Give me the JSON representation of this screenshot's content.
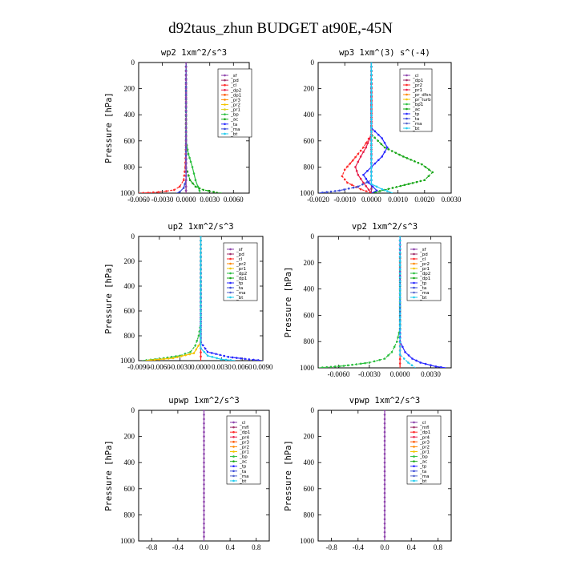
{
  "title": "d92taus_zhun  BUDGET at90E,-45N",
  "chart_data": [
    {
      "type": "line",
      "title": "wp2   1xm^2/s^3",
      "ylabel": "Pressure [hPa]",
      "xlim": [
        -0.006,
        0.008
      ],
      "ylim": [
        1000,
        0
      ],
      "xticks": [
        -0.006,
        -0.003,
        0.0,
        0.003,
        0.006
      ],
      "xtick_labels": [
        "-0.0060",
        "-0.0030",
        "0.0000",
        "0.0030",
        "0.0060"
      ],
      "yticks": [
        0,
        200,
        400,
        600,
        800,
        1000
      ],
      "ytick_labels": [
        "0",
        "200",
        "400",
        "600",
        "800",
        "1000"
      ],
      "legend": [
        "_sf",
        "_pd",
        "_cl",
        "_dp2",
        "_dp1",
        "_pr3",
        "_pr2",
        "_pr1",
        "_bp",
        "_ac",
        "_ta",
        "_ma",
        "_bt"
      ],
      "legend_colors": [
        "#8e44ad",
        "#a0306a",
        "#ff2a2a",
        "#e61e4a",
        "#ff5500",
        "#ff8800",
        "#f4c400",
        "#e0d020",
        "#2bbf3f",
        "#1aa81a",
        "#2a2aff",
        "#3b4bd8",
        "#22ccee"
      ],
      "series": [
        {
          "name": "_pd",
          "color": "#a0306a",
          "y": [
            0,
            200,
            400,
            600,
            700,
            800,
            900,
            950,
            980,
            1000
          ],
          "x": [
            0,
            0,
            0,
            0,
            0,
            0,
            0,
            0,
            0,
            0
          ]
        },
        {
          "name": "_cl",
          "color": "#ff2a2a",
          "y": [
            0,
            600,
            800,
            900,
            950,
            975,
            985,
            992,
            997,
            1000
          ],
          "x": [
            0,
            0,
            -0.0001,
            -0.0003,
            -0.0008,
            -0.0015,
            -0.0025,
            -0.0035,
            -0.0048,
            -0.006
          ]
        },
        {
          "name": "_bp",
          "color": "#2bbf3f",
          "y": [
            0,
            600,
            700,
            760,
            800,
            850,
            900,
            950,
            980,
            1000
          ],
          "x": [
            0,
            0,
            0.0003,
            0.0006,
            0.0008,
            0.001,
            0.0012,
            0.0015,
            0.0017,
            0.0018
          ]
        },
        {
          "name": "_ac",
          "color": "#1aa81a",
          "y": [
            0,
            800,
            900,
            950,
            975,
            990,
            1000
          ],
          "x": [
            0,
            0,
            0.0005,
            0.0012,
            0.0022,
            0.0035,
            0.0045
          ]
        },
        {
          "name": "_ma",
          "color": "#3b4bd8",
          "y": [
            0,
            900,
            960,
            990,
            1000
          ],
          "x": [
            0,
            0,
            -0.0003,
            -0.0008,
            -0.0012
          ]
        },
        {
          "name": "_sf",
          "color": "#8e44ad",
          "y": [
            0,
            200,
            400,
            600,
            700,
            800,
            900,
            950,
            980,
            1000
          ],
          "x": [
            0,
            0,
            0,
            0,
            0,
            0,
            0,
            0,
            0,
            0
          ]
        }
      ]
    },
    {
      "type": "line",
      "title": "wp3   1xm^(3) s^(-4)",
      "ylabel": "",
      "xlim": [
        -0.002,
        0.003
      ],
      "ylim": [
        1000,
        0
      ],
      "xticks": [
        -0.002,
        -0.001,
        0.0,
        0.001,
        0.002,
        0.003
      ],
      "xtick_labels": [
        "-0.0020",
        "-0.0010",
        "0.0000",
        "0.0010",
        "0.0020",
        "0.0030"
      ],
      "yticks": [
        0,
        200,
        400,
        600,
        800,
        1000
      ],
      "ytick_labels": [
        "0",
        "200",
        "400",
        "600",
        "800",
        "1000"
      ],
      "legend": [
        "_cl",
        "_dp1",
        "_pr2",
        "_pr1",
        "_pr_dfsn",
        "_pr_turb",
        "_bp1",
        "_ac",
        "_tp",
        "_ta",
        "_ma",
        "_bt"
      ],
      "legend_colors": [
        "#8e44ad",
        "#a0306a",
        "#ff2a2a",
        "#e61e4a",
        "#ff8800",
        "#f4c400",
        "#2bbf3f",
        "#1aa81a",
        "#2a2aff",
        "#3b4bd8",
        "#5566cc",
        "#22ccee"
      ],
      "series": [
        {
          "name": "_cl",
          "color": "#a0306a",
          "y": [
            0,
            200,
            400,
            600,
            800,
            1000
          ],
          "x": [
            0,
            0,
            0,
            0,
            0,
            0
          ]
        },
        {
          "name": "_ac",
          "color": "#1aa81a",
          "y": [
            0,
            550,
            650,
            720,
            780,
            840,
            900,
            960,
            1000
          ],
          "x": [
            0,
            0,
            0.0005,
            0.0012,
            0.0019,
            0.0023,
            0.002,
            0.0008,
            0.0
          ]
        },
        {
          "name": "_tp",
          "color": "#2a2aff",
          "y": [
            0,
            500,
            580,
            650,
            720,
            800,
            860,
            920,
            980,
            1000
          ],
          "x": [
            0,
            0,
            0.0004,
            0.0006,
            0.0004,
            0.0,
            -0.0003,
            -0.0001,
            0.0002,
            0.0
          ]
        },
        {
          "name": "_pr2",
          "color": "#ff2a2a",
          "y": [
            0,
            550,
            650,
            750,
            820,
            870,
            920,
            970,
            1000
          ],
          "x": [
            0,
            0,
            -0.0003,
            -0.0007,
            -0.001,
            -0.0011,
            -0.0009,
            -0.0004,
            0.0
          ]
        },
        {
          "name": "_pr1",
          "color": "#e61e4a",
          "y": [
            0,
            550,
            650,
            720,
            800,
            860,
            920,
            1000
          ],
          "x": [
            0,
            0,
            -0.0002,
            -0.0004,
            -0.0006,
            -0.0005,
            -0.0003,
            0.0
          ]
        },
        {
          "name": "_ta",
          "color": "#3b4bd8",
          "y": [
            0,
            900,
            950,
            980,
            1000
          ],
          "x": [
            0,
            0,
            -0.0005,
            -0.0012,
            -0.002
          ]
        },
        {
          "name": "_bt",
          "color": "#22ccee",
          "y": [
            0,
            930,
            970,
            1000
          ],
          "x": [
            0,
            0,
            0.0004,
            0.0008
          ]
        }
      ]
    },
    {
      "type": "line",
      "title": "up2   1xm^2/s^3",
      "ylabel": "Pressure [hPa]",
      "xlim": [
        -0.009,
        0.009
      ],
      "ylim": [
        1000,
        0
      ],
      "xticks": [
        -0.009,
        -0.006,
        -0.003,
        0.0,
        0.003,
        0.006,
        0.009
      ],
      "xtick_labels": [
        "-0.0090",
        "-0.0060",
        "-0.0030",
        "0.0000",
        "0.0030",
        "0.0060",
        "0.0090"
      ],
      "yticks": [
        0,
        200,
        400,
        600,
        800,
        1000
      ],
      "ytick_labels": [
        "0",
        "200",
        "400",
        "600",
        "800",
        "1000"
      ],
      "legend": [
        "_sf",
        "_pd",
        "_cl",
        "_pr2",
        "_pr1",
        "_dp2",
        "_dp1",
        "_tp",
        "_ta",
        "_ma",
        "_bt"
      ],
      "legend_colors": [
        "#8e44ad",
        "#a0306a",
        "#ff2a2a",
        "#ff8800",
        "#f4c400",
        "#2bbf3f",
        "#1aa81a",
        "#2a2aff",
        "#3b4bd8",
        "#5566cc",
        "#22ccee"
      ],
      "series": [
        {
          "name": "_pd",
          "color": "#ff2a2a",
          "y": [
            0,
            200,
            400,
            600,
            800,
            1000
          ],
          "x": [
            0,
            0,
            0,
            0,
            0,
            0
          ]
        },
        {
          "name": "_dp1",
          "color": "#2bbf3f",
          "y": [
            0,
            700,
            800,
            880,
            930,
            960,
            985,
            1000
          ],
          "x": [
            0,
            0,
            -0.0003,
            -0.0008,
            -0.0015,
            -0.003,
            -0.006,
            -0.0085
          ]
        },
        {
          "name": "_pr1",
          "color": "#f4c400",
          "y": [
            0,
            850,
            940,
            980,
            1000
          ],
          "x": [
            0,
            0,
            -0.001,
            -0.004,
            -0.008
          ]
        },
        {
          "name": "_tp",
          "color": "#2a2aff",
          "y": [
            0,
            850,
            930,
            970,
            990,
            1000
          ],
          "x": [
            0,
            0,
            0.001,
            0.004,
            0.007,
            0.009
          ]
        },
        {
          "name": "_bt",
          "color": "#22ccee",
          "y": [
            0,
            900,
            960,
            990,
            1000
          ],
          "x": [
            0,
            0,
            0.001,
            0.003,
            0.005
          ]
        }
      ]
    },
    {
      "type": "line",
      "title": "vp2   1xm^2/s^3",
      "ylabel": "Pressure [hPa]",
      "xlim": [
        -0.008,
        0.005
      ],
      "ylim": [
        1000,
        0
      ],
      "xticks": [
        -0.006,
        -0.003,
        0.0,
        0.003
      ],
      "xtick_labels": [
        "-0.0060",
        "-0.0030",
        "0.0000",
        "0.0030"
      ],
      "yticks": [
        0,
        200,
        400,
        600,
        800,
        1000
      ],
      "ytick_labels": [
        "0",
        "200",
        "400",
        "600",
        "800",
        "1000"
      ],
      "legend": [
        "_sf",
        "_pd",
        "_cl",
        "_pr2",
        "_pr1",
        "_dp2",
        "_dp1",
        "_tp",
        "_ta",
        "_ma",
        "_bt"
      ],
      "legend_colors": [
        "#8e44ad",
        "#a0306a",
        "#ff2a2a",
        "#ff8800",
        "#f4c400",
        "#2bbf3f",
        "#1aa81a",
        "#2a2aff",
        "#3b4bd8",
        "#5566cc",
        "#22ccee"
      ],
      "series": [
        {
          "name": "_pd",
          "color": "#ff2a2a",
          "y": [
            0,
            200,
            400,
            600,
            800,
            1000
          ],
          "x": [
            0,
            0,
            0,
            0,
            0,
            0
          ]
        },
        {
          "name": "_dp1",
          "color": "#2bbf3f",
          "y": [
            0,
            700,
            800,
            880,
            930,
            960,
            985,
            1000
          ],
          "x": [
            0,
            0,
            -0.0003,
            -0.0008,
            -0.0015,
            -0.003,
            -0.0055,
            -0.008
          ]
        },
        {
          "name": "_tp",
          "color": "#2a2aff",
          "y": [
            0,
            800,
            880,
            930,
            960,
            990,
            1000
          ],
          "x": [
            0,
            0,
            0.0005,
            0.0012,
            0.002,
            0.0035,
            0.0045
          ]
        },
        {
          "name": "_bt",
          "color": "#22ccee",
          "y": [
            0,
            900,
            960,
            1000
          ],
          "x": [
            0,
            0,
            0.0008,
            0.0015
          ]
        }
      ]
    },
    {
      "type": "line",
      "title": "upwp   1xm^2/s^3",
      "ylabel": "Pressure [hPa]",
      "xlim": [
        -1.0,
        1.0
      ],
      "ylim": [
        1000,
        0
      ],
      "xticks": [
        -0.8,
        -0.4,
        0.0,
        0.4,
        0.8
      ],
      "xtick_labels": [
        "-0.8",
        "-0.4",
        "0.0",
        "0.4",
        "0.8"
      ],
      "yticks": [
        0,
        200,
        400,
        600,
        800,
        1000
      ],
      "ytick_labels": [
        "0",
        "200",
        "400",
        "600",
        "800",
        "1000"
      ],
      "legend": [
        "_cl",
        "_mfl",
        "_dp1",
        "_pr4",
        "_pr3",
        "_pr2",
        "_pr1",
        "_bp",
        "_ac",
        "_tp",
        "_ta",
        "_ma",
        "_bt"
      ],
      "legend_colors": [
        "#8e44ad",
        "#a0306a",
        "#ff2a2a",
        "#e61e4a",
        "#ff5500",
        "#ff8800",
        "#f4c400",
        "#2bbf3f",
        "#1aa81a",
        "#2a2aff",
        "#3b4bd8",
        "#5566cc",
        "#22ccee"
      ],
      "series": [
        {
          "name": "_cl",
          "color": "#8e44ad",
          "y": [
            0,
            200,
            400,
            600,
            800,
            1000
          ],
          "x": [
            0,
            0,
            0,
            0,
            0,
            0
          ]
        }
      ]
    },
    {
      "type": "line",
      "title": "vpwp   1xm^2/s^3",
      "ylabel": "Pressure [hPa]",
      "xlim": [
        -1.0,
        1.0
      ],
      "ylim": [
        1000,
        0
      ],
      "xticks": [
        -0.8,
        -0.4,
        0.0,
        0.4,
        0.8
      ],
      "xtick_labels": [
        "-0.8",
        "-0.4",
        "0.0",
        "0.4",
        "0.8"
      ],
      "yticks": [
        0,
        200,
        400,
        600,
        800,
        1000
      ],
      "ytick_labels": [
        "0",
        "200",
        "400",
        "600",
        "800",
        "1000"
      ],
      "legend": [
        "_cl",
        "_mfl",
        "_dp1",
        "_pr4",
        "_pr3",
        "_pr2",
        "_pr1",
        "_bp",
        "_ac",
        "_tp",
        "_ta",
        "_ma",
        "_bt"
      ],
      "legend_colors": [
        "#8e44ad",
        "#a0306a",
        "#ff2a2a",
        "#e61e4a",
        "#ff5500",
        "#ff8800",
        "#f4c400",
        "#2bbf3f",
        "#1aa81a",
        "#2a2aff",
        "#3b4bd8",
        "#5566cc",
        "#22ccee"
      ],
      "series": [
        {
          "name": "_cl",
          "color": "#8e44ad",
          "y": [
            0,
            200,
            400,
            600,
            800,
            1000
          ],
          "x": [
            0,
            0,
            0,
            0,
            0,
            0
          ]
        }
      ]
    }
  ]
}
